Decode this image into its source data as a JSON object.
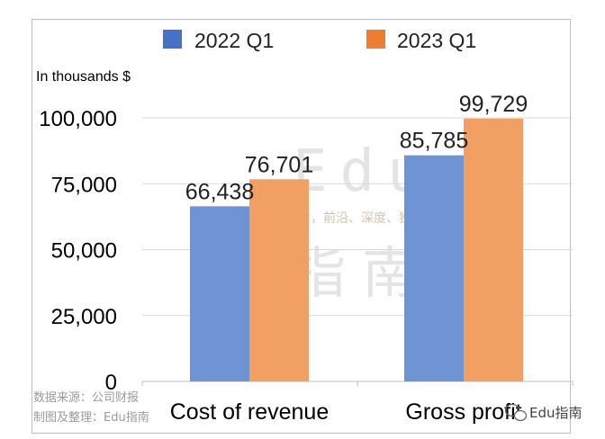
{
  "chart_data": {
    "type": "bar",
    "unit_label": "In thousands $",
    "categories": [
      "Cost of revenue",
      "Gross profit"
    ],
    "series": [
      {
        "name": "2022 Q1",
        "color": "#6f94d4",
        "legend_color": "#4472c4",
        "values": [
          66438,
          85785
        ],
        "labels": [
          "66,438",
          "85,785"
        ]
      },
      {
        "name": "2023 Q1",
        "color": "#f29f63",
        "legend_color": "#ed7d31",
        "values": [
          76701,
          99729
        ],
        "labels": [
          "76,701",
          "99,729"
        ]
      }
    ],
    "ylim": [
      0,
      100000
    ],
    "yticks": [
      0,
      25000,
      50000,
      75000,
      100000
    ],
    "ytick_labels": [
      "0",
      "25,000",
      "50,000",
      "75,000",
      "100,000"
    ],
    "legend_position": "top"
  },
  "credits": {
    "source": "数据来源：公司财报",
    "editor": "制图及整理：Edu指南"
  },
  "watermark": {
    "brand": "Edu",
    "tagline": "教育行业，前沿、深度、独家",
    "name_cn": "指南"
  },
  "badge": {
    "text": "Edu指南",
    "icon": "wechat-icon"
  }
}
